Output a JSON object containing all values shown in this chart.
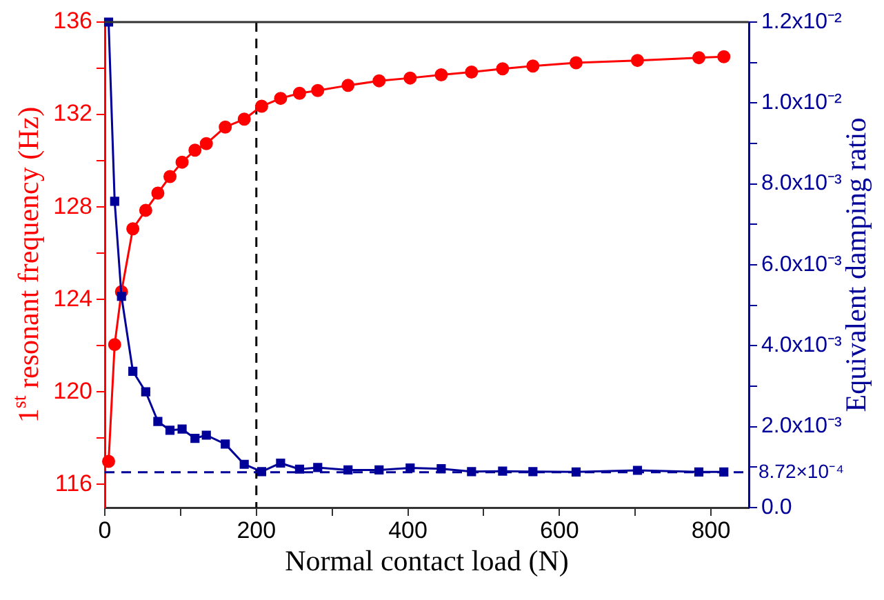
{
  "chart_data": {
    "type": "line",
    "xlabel": "Normal contact load (N)",
    "ylabel": "1$^{st}$ resonant frequency (Hz)",
    "y2label": "Equivalent damping ratio",
    "grid": false,
    "legend": false,
    "line_style": "solid",
    "xlim": [
      0,
      850
    ],
    "xticks": [
      0,
      {
        "value": 100,
        "label": null
      },
      200,
      {
        "value": 300,
        "label": null
      },
      400,
      {
        "value": 500,
        "label": null
      },
      600,
      {
        "value": 700,
        "label": null
      },
      800
    ],
    "ylim": [
      115,
      136
    ],
    "yticks": [
      116,
      {
        "value": 118,
        "label": null
      },
      120,
      {
        "value": 122,
        "label": null
      },
      124,
      {
        "value": 126,
        "label": null
      },
      128,
      {
        "value": 130,
        "label": null
      },
      132,
      {
        "value": 134,
        "label": null
      },
      136
    ],
    "y2lim": [
      0,
      0.012
    ],
    "y2ticks": [
      {
        "value": 0,
        "label": "0.0"
      },
      {
        "value": 0.001,
        "label": null
      },
      {
        "value": 0.002,
        "label": "2.0x10⁻³"
      },
      {
        "value": 0.003,
        "label": null
      },
      {
        "value": 0.004,
        "label": "4.0x10⁻³"
      },
      {
        "value": 0.005,
        "label": null
      },
      {
        "value": 0.006,
        "label": "6.0x10⁻³"
      },
      {
        "value": 0.007,
        "label": null
      },
      {
        "value": 0.008,
        "label": "8.0x10⁻³"
      },
      {
        "value": 0.009,
        "label": null
      },
      {
        "value": 0.01,
        "label": "1.0x10⁻²"
      },
      {
        "value": 0.011,
        "label": null
      },
      {
        "value": 0.012,
        "label": "1.2x10⁻²"
      }
    ],
    "series": [
      {
        "color": "#ff0000",
        "marker": "circle",
        "x": [
          5,
          13,
          22,
          37,
          54,
          70,
          86,
          102,
          119,
          134,
          159,
          184,
          207,
          232,
          257,
          281,
          321,
          362,
          403,
          444,
          484,
          525,
          565,
          622,
          703,
          784,
          817
        ],
        "values": [
          117.0,
          122.05,
          124.34,
          127.06,
          127.86,
          128.6,
          129.32,
          129.94,
          130.46,
          130.74,
          131.46,
          131.8,
          132.36,
          132.7,
          132.92,
          133.04,
          133.26,
          133.46,
          133.58,
          133.72,
          133.84,
          133.98,
          134.1,
          134.24,
          134.34,
          134.46,
          134.5
        ]
      },
      {
        "color": "#000099",
        "marker": "square",
        "axis": "y2",
        "x": [
          5,
          13,
          22,
          37,
          54,
          70,
          86,
          102,
          119,
          134,
          159,
          184,
          207,
          232,
          257,
          281,
          321,
          362,
          403,
          444,
          484,
          525,
          565,
          622,
          703,
          784,
          817
        ],
        "values": [
          0.012,
          0.00757,
          0.00522,
          0.00337,
          0.00286,
          0.00213,
          0.00191,
          0.00194,
          0.00171,
          0.00179,
          0.00157,
          0.00107,
          0.00089,
          0.0011,
          0.00095,
          0.00099,
          0.00093,
          0.00093,
          0.00098,
          0.00096,
          0.00089,
          0.0009,
          0.00089,
          0.00088,
          0.00092,
          0.00088,
          0.00088
        ]
      }
    ],
    "ref_lines": [
      {
        "axis": "x",
        "value": 200,
        "color": "#000000",
        "line_style": "dashed"
      },
      {
        "axis": "y2",
        "value": 0.000872,
        "label": "8.72×10⁻⁴",
        "color": "#000099",
        "line_style": "dashed"
      }
    ]
  }
}
